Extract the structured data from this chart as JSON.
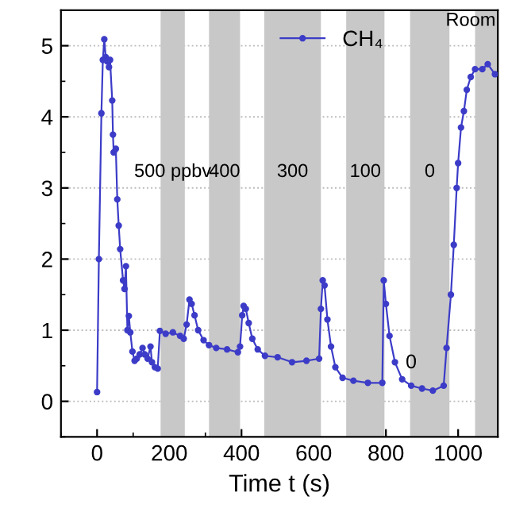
{
  "chart_data": {
    "type": "line",
    "xlabel": "Time t (s)",
    "xlim": [
      -100,
      1110
    ],
    "xticks": [
      0,
      200,
      400,
      600,
      800,
      1000
    ],
    "ylim": [
      -0.5,
      5.5
    ],
    "yticks": [
      0,
      1,
      2,
      3,
      4,
      5
    ],
    "grid": "y",
    "legend": "top",
    "marker": "circle",
    "line_style": "solid",
    "series": [
      {
        "name": "CH₄",
        "color": "#3c3cc8",
        "x": [
          0,
          5,
          12,
          16,
          20,
          24,
          28,
          33,
          36,
          42,
          44,
          46,
          52,
          56,
          60,
          64,
          72,
          76,
          80,
          84,
          88,
          92,
          98,
          104,
          110,
          118,
          126,
          132,
          140,
          148,
          152,
          160,
          168,
          174,
          190,
          210,
          230,
          240,
          248,
          256,
          262,
          270,
          280,
          295,
          310,
          330,
          360,
          390,
          396,
          402,
          406,
          412,
          420,
          430,
          445,
          465,
          500,
          540,
          580,
          615,
          620,
          625,
          630,
          638,
          648,
          660,
          680,
          710,
          750,
          790,
          794,
          800,
          810,
          825,
          845,
          870,
          900,
          930,
          960,
          968,
          980,
          988,
          996,
          1000,
          1008,
          1016,
          1024,
          1035,
          1047,
          1067,
          1082,
          1102
        ],
        "values": [
          0.13,
          2.0,
          4.05,
          4.8,
          5.09,
          4.84,
          4.78,
          4.7,
          4.8,
          4.23,
          3.75,
          3.5,
          3.55,
          2.84,
          2.47,
          2.14,
          1.7,
          1.58,
          1.9,
          1.0,
          1.2,
          0.97,
          0.7,
          0.57,
          0.6,
          0.66,
          0.75,
          0.66,
          0.6,
          0.77,
          0.55,
          0.48,
          0.46,
          0.99,
          0.95,
          0.97,
          0.92,
          0.88,
          1.08,
          1.43,
          1.37,
          1.21,
          1.0,
          0.86,
          0.79,
          0.75,
          0.73,
          0.69,
          0.77,
          1.21,
          1.34,
          1.3,
          1.1,
          0.88,
          0.73,
          0.64,
          0.62,
          0.55,
          0.57,
          0.6,
          1.3,
          1.7,
          1.63,
          1.15,
          0.77,
          0.48,
          0.33,
          0.29,
          0.26,
          0.26,
          1.7,
          1.37,
          0.92,
          0.55,
          0.31,
          0.22,
          0.18,
          0.15,
          0.22,
          0.75,
          1.5,
          2.2,
          3.0,
          3.35,
          3.85,
          4.08,
          4.38,
          4.56,
          4.67,
          4.67,
          4.74,
          4.6
        ]
      }
    ],
    "bands": [
      {
        "axis": "x",
        "from": 176,
        "to": 243,
        "color": "#c8c8c8",
        "label": "500 ppbv"
      },
      {
        "axis": "x",
        "from": 310,
        "to": 396,
        "color": "#c8c8c8",
        "label": "400"
      },
      {
        "axis": "x",
        "from": 463,
        "to": 620,
        "color": "#c8c8c8",
        "label": "300"
      },
      {
        "axis": "x",
        "from": 690,
        "to": 796,
        "color": "#c8c8c8",
        "label": "100"
      },
      {
        "axis": "x",
        "from": 867,
        "to": 976,
        "color": "#c8c8c8",
        "label": "0"
      },
      {
        "axis": "x",
        "from": 1047,
        "to": 1110,
        "color": "#c8c8c8",
        "label": "Room"
      }
    ],
    "annotations": [
      {
        "text": "0",
        "x": 870,
        "y": 0.22
      }
    ]
  }
}
